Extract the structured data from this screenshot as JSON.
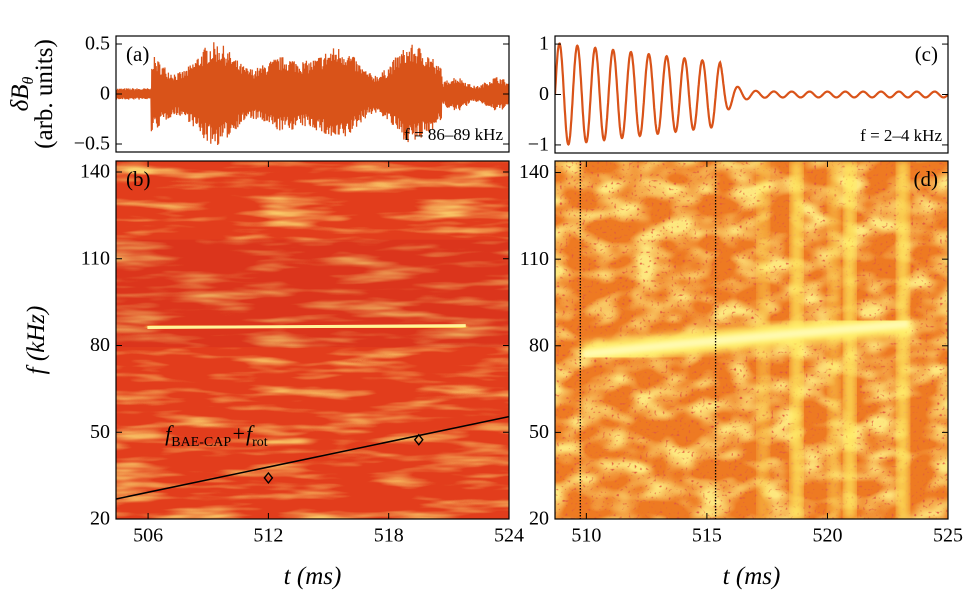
{
  "chart_data": [
    {
      "type": "waveform",
      "label": "(a)",
      "annotation": "f = 86–89 kHz",
      "ylabel": [
        "δB",
        "θ",
        "(arb. units)"
      ],
      "xlim": [
        504.4,
        524.0
      ],
      "ylim": [
        -0.58,
        0.58
      ],
      "yticks": [
        {
          "value": -0.5,
          "label": "−0.5"
        },
        0,
        0.5
      ],
      "color": "#d95319"
    },
    {
      "type": "spectrogram",
      "label": "(b)",
      "ylabel": "f (kHz)",
      "xlabel": "t (ms)",
      "annotation": [
        "f",
        "BAE-CAP",
        "+f",
        "rot"
      ],
      "xlim": [
        504.4,
        524.0
      ],
      "ylim": [
        20,
        143.8
      ],
      "xticks": [
        506,
        512,
        518,
        524
      ],
      "yticks": [
        20,
        50,
        80,
        110,
        140
      ],
      "series": [
        {
          "x": [
            504.4,
            524.0
          ],
          "values": [
            26.9,
            55.4
          ],
          "color": "#000000"
        },
        {
          "x": [
            512.0,
            519.5
          ],
          "values": [
            34.2,
            47.4
          ],
          "color": "#000000",
          "marker": "diamond"
        }
      ]
    },
    {
      "type": "waveform",
      "label": "(c)",
      "annotation": "f = 2–4 kHz",
      "xlim": [
        508.7,
        525.0
      ],
      "ylim": [
        -1.16,
        1.16
      ],
      "yticks": [
        {
          "value": -1,
          "label": "−1"
        },
        0,
        1
      ],
      "color": "#d95319"
    },
    {
      "type": "spectrogram",
      "label": "(d)",
      "xlabel": "t (ms)",
      "xlim": [
        508.7,
        525.0
      ],
      "ylim": [
        20,
        144
      ],
      "xticks": [
        510,
        515,
        520,
        525
      ],
      "yticks": [
        20,
        50,
        80,
        110,
        140
      ],
      "vlines": [
        509.75,
        515.36
      ]
    }
  ]
}
